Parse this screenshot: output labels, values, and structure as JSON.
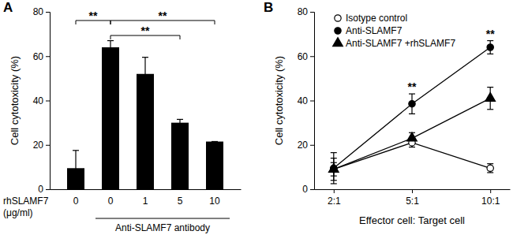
{
  "chart_data": [
    {
      "type": "bar",
      "title": "A",
      "ylabel": "Cell cytotoxicity (%)",
      "xlabel": "rhSLAMF7\n(μg/ml)",
      "categories": [
        "0",
        "0",
        "1",
        "5",
        "10"
      ],
      "values": [
        9.5,
        64,
        52,
        30,
        21.5
      ],
      "errors": [
        8,
        3,
        7.5,
        1.5,
        0
      ],
      "color": "#000000",
      "ylim": [
        0,
        80
      ],
      "yticks": [
        0,
        20,
        40,
        60,
        80
      ],
      "annotations": [
        {
          "text": "**",
          "between": [
            0,
            1
          ]
        },
        {
          "text": "**",
          "between": [
            1,
            3
          ]
        },
        {
          "text": "**",
          "between": [
            1,
            4
          ]
        },
        {
          "text": "Anti-SLAMF7 antibody",
          "span": [
            1,
            4
          ]
        }
      ]
    },
    {
      "type": "line",
      "title": "B",
      "ylabel": "Cell cytotoxicity (%)",
      "xlabel": "Effector cell: Target cell",
      "categories": [
        "2:1",
        "5:1",
        "10:1"
      ],
      "series": [
        {
          "name": "Isotype control",
          "color": "#000000",
          "marker": "circle-open",
          "values": [
            9,
            21,
            9.5
          ],
          "errors": [
            3,
            2,
            2
          ]
        },
        {
          "name": "Anti-SLAMF7",
          "color": "#000000",
          "marker": "circle",
          "values": [
            9.5,
            38.5,
            64
          ],
          "errors": [
            7,
            4.5,
            3
          ]
        },
        {
          "name": "Anti-SLAMF7 +rhSLAMF7",
          "color": "#000000",
          "marker": "triangle",
          "values": [
            9,
            23,
            41
          ],
          "errors": [
            5,
            2.5,
            5
          ]
        }
      ],
      "ylim": [
        0,
        80
      ],
      "yticks": [
        0,
        20,
        40,
        60,
        80
      ],
      "legend": "upper left",
      "annotations": [
        {
          "text": "**",
          "at": 1
        },
        {
          "text": "**",
          "at": 2
        }
      ]
    }
  ]
}
